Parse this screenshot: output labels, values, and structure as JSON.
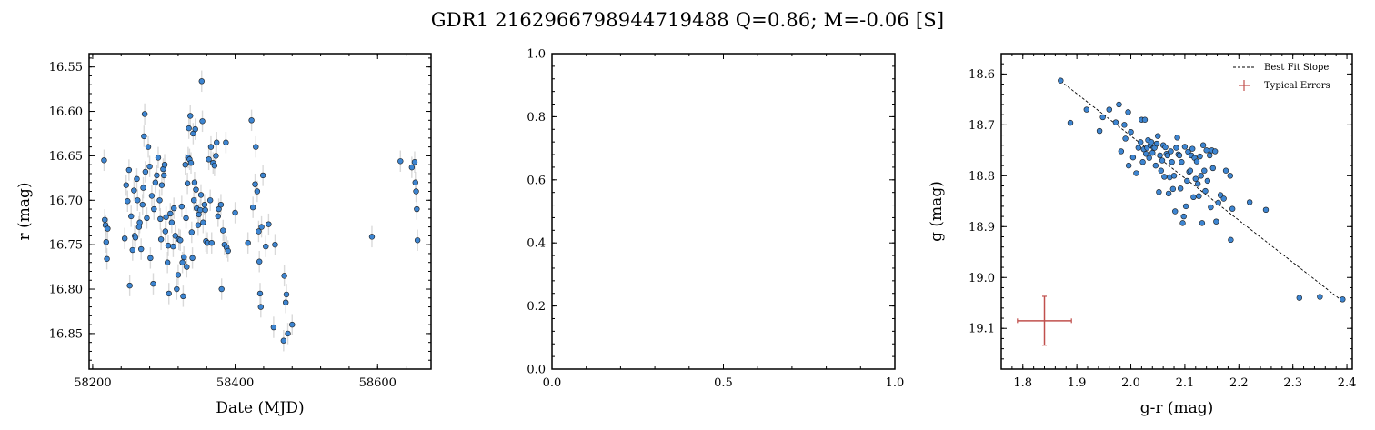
{
  "figure": {
    "title": "GDR1 2162966798944719488  Q=0.86; M=-0.06 [S]"
  },
  "colors": {
    "point_fill": "#3d85d1",
    "point_edge": "#1a1a1a",
    "errorbar": "#d0d0d0",
    "fit_line": "#000000",
    "typical_error": "#c0504d"
  },
  "chart_data": [
    {
      "type": "scatter",
      "xlabel": "Date (MJD)",
      "ylabel": "r (mag)",
      "xlim": [
        58195,
        58675
      ],
      "ylim": [
        16.89,
        16.535
      ],
      "y_inverted": true,
      "xticks": [
        58200,
        58400,
        58600
      ],
      "xtick_labels": [
        "58200",
        "58400",
        "58600"
      ],
      "yticks": [
        16.55,
        16.6,
        16.65,
        16.7,
        16.75,
        16.8,
        16.85
      ],
      "ytick_labels": [
        "16.55",
        "16.60",
        "16.65",
        "16.70",
        "16.75",
        "16.80",
        "16.85"
      ],
      "y_error": 0.012,
      "points": [
        [
          58216,
          16.655
        ],
        [
          58217,
          16.722
        ],
        [
          58218,
          16.728
        ],
        [
          58219,
          16.747
        ],
        [
          58220,
          16.766
        ],
        [
          58221,
          16.732
        ],
        [
          58245,
          16.743
        ],
        [
          58247,
          16.683
        ],
        [
          58249,
          16.701
        ],
        [
          58251,
          16.666
        ],
        [
          58252,
          16.796
        ],
        [
          58254,
          16.718
        ],
        [
          58256,
          16.756
        ],
        [
          58258,
          16.689
        ],
        [
          58259,
          16.74
        ],
        [
          58260,
          16.742
        ],
        [
          58262,
          16.676
        ],
        [
          58263,
          16.7
        ],
        [
          58265,
          16.73
        ],
        [
          58266,
          16.725
        ],
        [
          58268,
          16.755
        ],
        [
          58270,
          16.705
        ],
        [
          58271,
          16.686
        ],
        [
          58272,
          16.628
        ],
        [
          58273,
          16.603
        ],
        [
          58274,
          16.668
        ],
        [
          58276,
          16.72
        ],
        [
          58278,
          16.64
        ],
        [
          58280,
          16.662
        ],
        [
          58281,
          16.765
        ],
        [
          58283,
          16.695
        ],
        [
          58285,
          16.794
        ],
        [
          58286,
          16.71
        ],
        [
          58288,
          16.68
        ],
        [
          58290,
          16.672
        ],
        [
          58292,
          16.652
        ],
        [
          58294,
          16.7
        ],
        [
          58295,
          16.721
        ],
        [
          58296,
          16.744
        ],
        [
          58297,
          16.683
        ],
        [
          58299,
          16.665
        ],
        [
          58300,
          16.672
        ],
        [
          58301,
          16.66
        ],
        [
          58302,
          16.735
        ],
        [
          58303,
          16.719
        ],
        [
          58305,
          16.77
        ],
        [
          58306,
          16.751
        ],
        [
          58307,
          16.805
        ],
        [
          58309,
          16.715
        ],
        [
          58311,
          16.725
        ],
        [
          58313,
          16.752
        ],
        [
          58314,
          16.709
        ],
        [
          58316,
          16.74
        ],
        [
          58318,
          16.8
        ],
        [
          58320,
          16.784
        ],
        [
          58321,
          16.744
        ],
        [
          58323,
          16.745
        ],
        [
          58325,
          16.707
        ],
        [
          58326,
          16.77
        ],
        [
          58327,
          16.808
        ],
        [
          58328,
          16.764
        ],
        [
          58330,
          16.66
        ],
        [
          58331,
          16.72
        ],
        [
          58332,
          16.775
        ],
        [
          58333,
          16.681
        ],
        [
          58334,
          16.652
        ],
        [
          58335,
          16.619
        ],
        [
          58336,
          16.654
        ],
        [
          58337,
          16.605
        ],
        [
          58338,
          16.658
        ],
        [
          58339,
          16.736
        ],
        [
          58340,
          16.765
        ],
        [
          58341,
          16.625
        ],
        [
          58342,
          16.7
        ],
        [
          58343,
          16.68
        ],
        [
          58344,
          16.62
        ],
        [
          58345,
          16.688
        ],
        [
          58346,
          16.709
        ],
        [
          58348,
          16.728
        ],
        [
          58349,
          16.716
        ],
        [
          58351,
          16.711
        ],
        [
          58352,
          16.694
        ],
        [
          58353,
          16.566
        ],
        [
          58354,
          16.611
        ],
        [
          58355,
          16.725
        ],
        [
          58357,
          16.705
        ],
        [
          58358,
          16.711
        ],
        [
          58359,
          16.746
        ],
        [
          58361,
          16.748
        ],
        [
          58363,
          16.654
        ],
        [
          58365,
          16.7
        ],
        [
          58366,
          16.64
        ],
        [
          58367,
          16.748
        ],
        [
          58369,
          16.658
        ],
        [
          58371,
          16.661
        ],
        [
          58373,
          16.65
        ],
        [
          58374,
          16.635
        ],
        [
          58376,
          16.718
        ],
        [
          58377,
          16.71
        ],
        [
          58380,
          16.705
        ],
        [
          58381,
          16.8
        ],
        [
          58383,
          16.734
        ],
        [
          58385,
          16.75
        ],
        [
          58387,
          16.635
        ],
        [
          58388,
          16.753
        ],
        [
          58390,
          16.757
        ],
        [
          58400,
          16.714
        ],
        [
          58418,
          16.748
        ],
        [
          58423,
          16.61
        ],
        [
          58425,
          16.708
        ],
        [
          58428,
          16.682
        ],
        [
          58429,
          16.64
        ],
        [
          58431,
          16.69
        ],
        [
          58433,
          16.735
        ],
        [
          58434,
          16.769
        ],
        [
          58435,
          16.805
        ],
        [
          58436,
          16.82
        ],
        [
          58437,
          16.73
        ],
        [
          58439,
          16.672
        ],
        [
          58443,
          16.752
        ],
        [
          58447,
          16.727
        ],
        [
          58454,
          16.843
        ],
        [
          58456,
          16.75
        ],
        [
          58468,
          16.858
        ],
        [
          58469,
          16.785
        ],
        [
          58471,
          16.815
        ],
        [
          58472,
          16.806
        ],
        [
          58474,
          16.85
        ],
        [
          58480,
          16.84
        ],
        [
          58592,
          16.741
        ],
        [
          58632,
          16.656
        ],
        [
          58648,
          16.663
        ],
        [
          58652,
          16.657
        ],
        [
          58653,
          16.68
        ],
        [
          58654,
          16.69
        ],
        [
          58655,
          16.71
        ],
        [
          58656,
          16.745
        ]
      ]
    },
    {
      "type": "scatter",
      "xlabel": "",
      "ylabel": "",
      "xlim": [
        0,
        1
      ],
      "ylim": [
        0,
        1
      ],
      "xticks": [
        0,
        0.5,
        1
      ],
      "xtick_labels": [
        "0.0",
        "0.5",
        "1.0"
      ],
      "yticks": [
        0,
        0.2,
        0.4,
        0.6,
        0.8,
        1
      ],
      "ytick_labels": [
        "0.0",
        "0.2",
        "0.4",
        "0.6",
        "0.8",
        "1.0"
      ],
      "points": []
    },
    {
      "type": "scatter",
      "xlabel": "g-r (mag)",
      "ylabel": "g (mag)",
      "xlim": [
        1.76,
        2.41
      ],
      "ylim": [
        19.18,
        18.56
      ],
      "y_inverted": true,
      "xticks": [
        1.8,
        1.9,
        2.0,
        2.1,
        2.2,
        2.3,
        2.4
      ],
      "xtick_labels": [
        "1.8",
        "1.9",
        "2.0",
        "2.1",
        "2.2",
        "2.3",
        "2.4"
      ],
      "yticks": [
        18.6,
        18.7,
        18.8,
        18.9,
        19.0,
        19.1
      ],
      "ytick_labels": [
        "18.6",
        "18.7",
        "18.8",
        "18.9",
        "19.0",
        "19.1"
      ],
      "best_fit": {
        "x": [
          1.87,
          2.39
        ],
        "y": [
          18.614,
          19.045
        ]
      },
      "typical_error": {
        "x": 1.84,
        "y": 19.085,
        "xerr": 0.05,
        "yerr": 0.048
      },
      "legend": [
        "Best Fit Slope",
        "Typical Errors"
      ],
      "legend_position": "top-right",
      "points": [
        [
          1.87,
          18.613
        ],
        [
          1.888,
          18.696
        ],
        [
          1.918,
          18.67
        ],
        [
          1.942,
          18.712
        ],
        [
          1.948,
          18.685
        ],
        [
          1.96,
          18.67
        ],
        [
          1.972,
          18.695
        ],
        [
          1.978,
          18.66
        ],
        [
          1.982,
          18.752
        ],
        [
          1.988,
          18.7
        ],
        [
          1.99,
          18.727
        ],
        [
          1.995,
          18.675
        ],
        [
          1.996,
          18.78
        ],
        [
          2.0,
          18.714
        ],
        [
          2.004,
          18.764
        ],
        [
          2.01,
          18.795
        ],
        [
          2.014,
          18.745
        ],
        [
          2.018,
          18.734
        ],
        [
          2.02,
          18.69
        ],
        [
          2.022,
          18.773
        ],
        [
          2.024,
          18.748
        ],
        [
          2.026,
          18.69
        ],
        [
          2.028,
          18.757
        ],
        [
          2.03,
          18.745
        ],
        [
          2.032,
          18.73
        ],
        [
          2.034,
          18.765
        ],
        [
          2.036,
          18.74
        ],
        [
          2.038,
          18.734
        ],
        [
          2.04,
          18.755
        ],
        [
          2.042,
          18.745
        ],
        [
          2.044,
          18.745
        ],
        [
          2.046,
          18.78
        ],
        [
          2.048,
          18.737
        ],
        [
          2.05,
          18.722
        ],
        [
          2.052,
          18.832
        ],
        [
          2.054,
          18.76
        ],
        [
          2.056,
          18.79
        ],
        [
          2.058,
          18.77
        ],
        [
          2.06,
          18.74
        ],
        [
          2.062,
          18.802
        ],
        [
          2.064,
          18.744
        ],
        [
          2.066,
          18.757
        ],
        [
          2.068,
          18.76
        ],
        [
          2.07,
          18.835
        ],
        [
          2.072,
          18.803
        ],
        [
          2.074,
          18.752
        ],
        [
          2.076,
          18.773
        ],
        [
          2.078,
          18.826
        ],
        [
          2.08,
          18.8
        ],
        [
          2.082,
          18.87
        ],
        [
          2.084,
          18.745
        ],
        [
          2.086,
          18.725
        ],
        [
          2.088,
          18.758
        ],
        [
          2.09,
          18.76
        ],
        [
          2.092,
          18.825
        ],
        [
          2.094,
          18.773
        ],
        [
          2.096,
          18.893
        ],
        [
          2.098,
          18.88
        ],
        [
          2.1,
          18.743
        ],
        [
          2.102,
          18.86
        ],
        [
          2.104,
          18.81
        ],
        [
          2.106,
          18.753
        ],
        [
          2.108,
          18.792
        ],
        [
          2.11,
          18.79
        ],
        [
          2.112,
          18.76
        ],
        [
          2.114,
          18.747
        ],
        [
          2.116,
          18.842
        ],
        [
          2.118,
          18.765
        ],
        [
          2.12,
          18.806
        ],
        [
          2.122,
          18.772
        ],
        [
          2.124,
          18.816
        ],
        [
          2.126,
          18.84
        ],
        [
          2.128,
          18.762
        ],
        [
          2.13,
          18.8
        ],
        [
          2.132,
          18.893
        ],
        [
          2.134,
          18.74
        ],
        [
          2.136,
          18.79
        ],
        [
          2.138,
          18.83
        ],
        [
          2.14,
          18.75
        ],
        [
          2.142,
          18.81
        ],
        [
          2.146,
          18.76
        ],
        [
          2.148,
          18.862
        ],
        [
          2.15,
          18.75
        ],
        [
          2.152,
          18.785
        ],
        [
          2.156,
          18.752
        ],
        [
          2.158,
          18.89
        ],
        [
          2.162,
          18.853
        ],
        [
          2.166,
          18.838
        ],
        [
          2.172,
          18.845
        ],
        [
          2.176,
          18.79
        ],
        [
          2.184,
          18.8
        ],
        [
          2.185,
          18.926
        ],
        [
          2.188,
          18.865
        ],
        [
          2.22,
          18.852
        ],
        [
          2.25,
          18.867
        ],
        [
          2.312,
          19.04
        ],
        [
          2.35,
          19.038
        ],
        [
          2.392,
          19.043
        ]
      ]
    }
  ]
}
